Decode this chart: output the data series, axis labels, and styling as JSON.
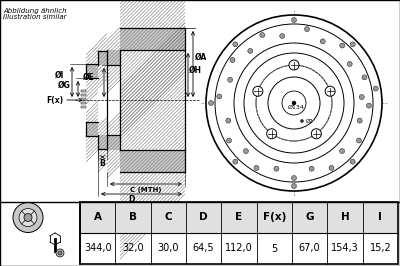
{
  "header_display": [
    "A",
    "B",
    "C",
    "D",
    "E",
    "F(x)",
    "G",
    "H",
    "I"
  ],
  "values": [
    "344,0",
    "32,0",
    "30,0",
    "64,5",
    "112,0",
    "5",
    "67,0",
    "154,3",
    "15,2"
  ],
  "bg_color": "#ffffff",
  "line_color": "#000000",
  "gray_fill": "#c8c8c8",
  "hatch_color": "#555555"
}
